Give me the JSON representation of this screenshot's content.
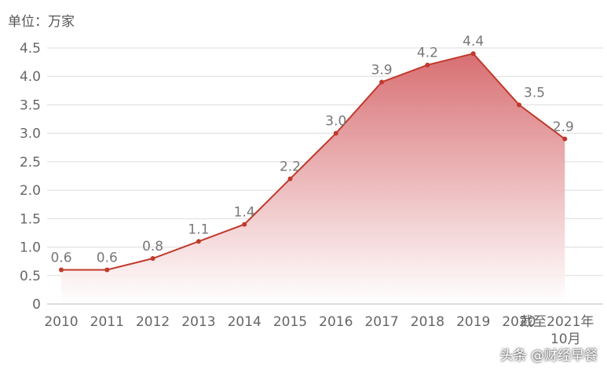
{
  "chart_data": {
    "type": "area",
    "unit_label": "单位：万家",
    "categories": [
      "2010",
      "2011",
      "2012",
      "2013",
      "2014",
      "2015",
      "2016",
      "2017",
      "2018",
      "2019",
      "2020",
      "截至2021年10月"
    ],
    "values": [
      0.6,
      0.6,
      0.8,
      1.1,
      1.4,
      2.2,
      3.0,
      3.9,
      4.2,
      4.4,
      3.5,
      2.9
    ],
    "value_labels": [
      "0.6",
      "0.6",
      "0.8",
      "1.1",
      "1.4",
      "2.2",
      "3.0",
      "3.9",
      "4.2",
      "4.4",
      "3.5",
      "2.9"
    ],
    "y_ticks": [
      "0",
      "0.5",
      "1.0",
      "1.5",
      "2.0",
      "2.5",
      "3.0",
      "3.5",
      "4.0",
      "4.5"
    ],
    "ylim": [
      0,
      4.5
    ],
    "grid": true,
    "colors": {
      "line": "#c0392b",
      "fill_top": "#d9787a",
      "fill_bottom": "#ffffff",
      "grid": "#dddddd"
    }
  },
  "watermark": {
    "text": "头条 @财经早餐"
  }
}
